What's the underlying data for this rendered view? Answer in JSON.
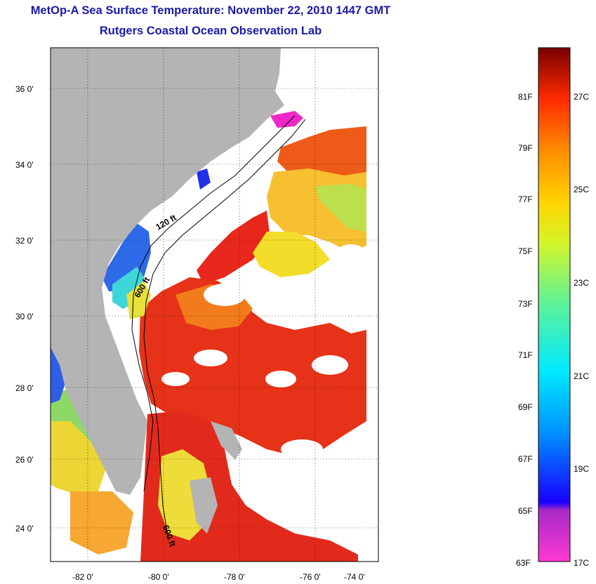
{
  "title": "MetOp-A Sea Surface Temperature:  November 22, 2010 1447 GMT",
  "subtitle": "Rutgers Coastal Ocean Observation Lab",
  "map": {
    "lat_labels": [
      "36 0'",
      "34 0'",
      "32 0'",
      "30 0'",
      "28 0'",
      "26 0'",
      "24 0'"
    ],
    "lon_labels": [
      "-82 0'",
      "-80 0'",
      "-78 0'",
      "-76 0'",
      "-74 0'"
    ],
    "contours": [
      "120 ft",
      "600 ft",
      "600 ft"
    ],
    "colors": {
      "land": "#b4b4b4",
      "cloud": "#ffffff",
      "warm": "#ec3412",
      "hot": "#e8221a",
      "orange": "#f27a1a",
      "yellow": "#f0e028",
      "green": "#b8e04a",
      "cool_blue": "#2e6ae8",
      "magenta": "#f028c8"
    }
  },
  "colorbar": {
    "f_labels": [
      "81F",
      "79F",
      "77F",
      "75F",
      "73F",
      "71F",
      "69F",
      "67F",
      "65F",
      "63F"
    ],
    "c_labels": [
      "27C",
      "25C",
      "23C",
      "21C",
      "19C",
      "17C"
    ]
  }
}
